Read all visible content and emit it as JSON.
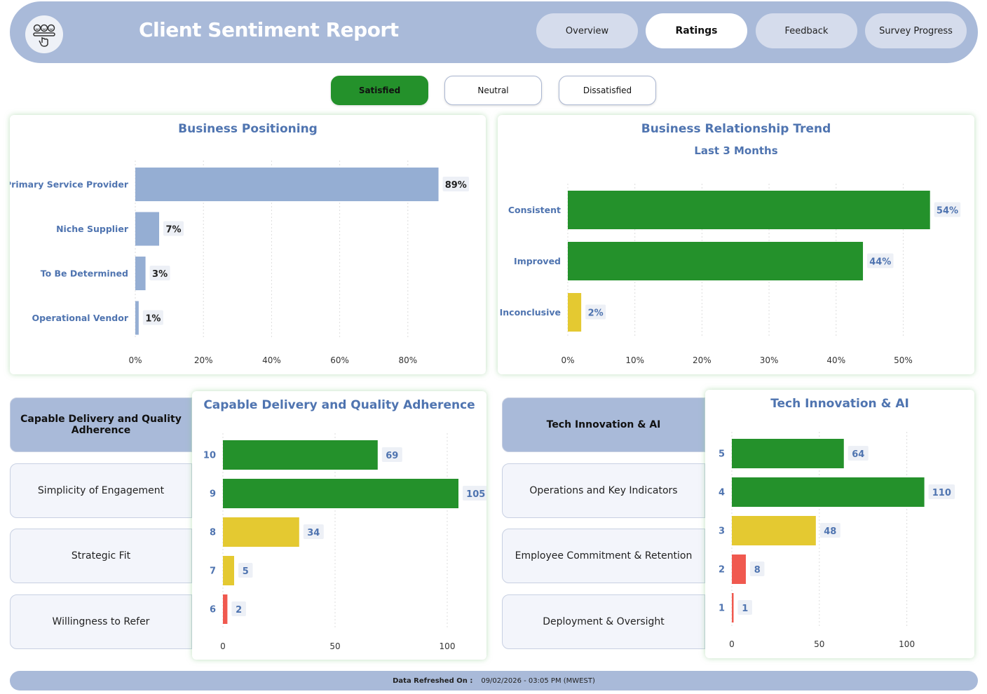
{
  "header": {
    "title": "Client Sentiment Report",
    "logo_icon": "survey-hand-icon",
    "nav": [
      {
        "label": "Overview",
        "active": false
      },
      {
        "label": "Ratings",
        "active": true
      },
      {
        "label": "Feedback",
        "active": false
      },
      {
        "label": "Survey Progress",
        "active": false
      }
    ]
  },
  "filters": [
    {
      "label": "Satisfied",
      "active": true
    },
    {
      "label": "Neutral",
      "active": false
    },
    {
      "label": "Dissatisfied",
      "active": false
    }
  ],
  "colors": {
    "accent": "#a9bad9",
    "title_blue": "#4f74b0",
    "green": "#24912b",
    "yellow": "#e4c931",
    "red": "#f0594f",
    "positioning_bar": "#95aed3"
  },
  "positioning": {
    "title": "Business Positioning"
  },
  "trend": {
    "title": "Business Relationship Trend",
    "subtitle": "Last 3 Months"
  },
  "delivery": {
    "title": "Capable Delivery and Quality Adherence",
    "side_items": [
      {
        "label": "Capable Delivery and Quality Adherence",
        "active": true
      },
      {
        "label": "Simplicity of Engagement",
        "active": false
      },
      {
        "label": "Strategic Fit",
        "active": false
      },
      {
        "label": "Willingness to Refer",
        "active": false
      }
    ]
  },
  "innovation": {
    "title": "Tech Innovation & AI",
    "side_items": [
      {
        "label": "Tech Innovation & AI",
        "active": true
      },
      {
        "label": "Operations and Key Indicators",
        "active": false
      },
      {
        "label": "Employee Commitment & Retention",
        "active": false
      },
      {
        "label": "Deployment & Oversight",
        "active": false
      }
    ]
  },
  "footer": {
    "label": "Data Refreshed On :",
    "value": "09/02/2026  -  03:05 PM (MWEST)"
  },
  "chart_data": [
    {
      "type": "bar",
      "orientation": "horizontal",
      "title": "Business Positioning",
      "categories": [
        "Primary Service Provider",
        "Niche Supplier",
        "To Be Determined",
        "Operational Vendor"
      ],
      "values": [
        89,
        7,
        3,
        1
      ],
      "value_labels": [
        "89%",
        "7%",
        "3%",
        "1%"
      ],
      "xlim": [
        0,
        100
      ],
      "xticks": [
        "0%",
        "20%",
        "40%",
        "60%",
        "80%"
      ],
      "grid": true
    },
    {
      "type": "bar",
      "orientation": "horizontal",
      "title": "Business Relationship Trend",
      "subtitle": "Last 3 Months",
      "categories": [
        "Consistent",
        "Improved",
        "Inconclusive"
      ],
      "values": [
        54,
        44,
        2
      ],
      "value_labels": [
        "54%",
        "44%",
        "2%"
      ],
      "bar_colors": [
        "#24912b",
        "#24912b",
        "#e4c931"
      ],
      "xlim": [
        0,
        58
      ],
      "xticks": [
        "0%",
        "10%",
        "20%",
        "30%",
        "40%",
        "50%"
      ],
      "grid": true
    },
    {
      "type": "bar",
      "orientation": "horizontal",
      "title": "Capable Delivery and Quality Adherence",
      "categories": [
        "10",
        "9",
        "8",
        "7",
        "6"
      ],
      "values": [
        69,
        105,
        34,
        5,
        2
      ],
      "bar_colors": [
        "#24912b",
        "#24912b",
        "#e4c931",
        "#e4c931",
        "#f0594f"
      ],
      "xlim": [
        0,
        115
      ],
      "xticks": [
        "0",
        "50",
        "100"
      ],
      "grid": true
    },
    {
      "type": "bar",
      "orientation": "horizontal",
      "title": "Tech Innovation & AI",
      "categories": [
        "5",
        "4",
        "3",
        "2",
        "1"
      ],
      "values": [
        64,
        110,
        48,
        8,
        1
      ],
      "bar_colors": [
        "#24912b",
        "#24912b",
        "#e4c931",
        "#f0594f",
        "#f0594f"
      ],
      "xlim": [
        0,
        135
      ],
      "xticks": [
        "0",
        "50",
        "100"
      ],
      "grid": true
    }
  ]
}
